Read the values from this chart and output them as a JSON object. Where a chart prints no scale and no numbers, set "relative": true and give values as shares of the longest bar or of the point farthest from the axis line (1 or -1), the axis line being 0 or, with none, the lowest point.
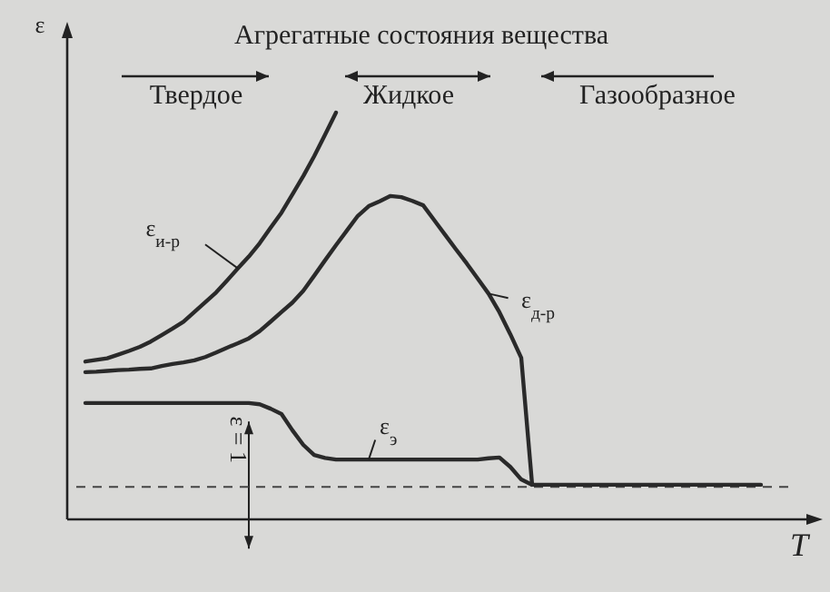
{
  "chart_data": {
    "type": "line",
    "relative": true,
    "title": "Агрегатные состояния вещества",
    "xlabel": "T",
    "ylabel": "ε",
    "marker": "none",
    "line_style": "solid",
    "categories": [
      null,
      null,
      null,
      null,
      null,
      null,
      null,
      null,
      null,
      null,
      null,
      null,
      null,
      null,
      null,
      null,
      null,
      null,
      null,
      null,
      null,
      null,
      null,
      null,
      null,
      null,
      null,
      null,
      null,
      null,
      null,
      null,
      null,
      null,
      null,
      null,
      null,
      null,
      null,
      null,
      null,
      null,
      null,
      null,
      null,
      null,
      null,
      null,
      null,
      null,
      null,
      null,
      null,
      null,
      null,
      null,
      null,
      null,
      null,
      null,
      null,
      null,
      null
    ],
    "annotations": [
      "Твердое",
      "Жидкое",
      "Газообразное",
      "ε = 1"
    ],
    "ref_lines": [
      {
        "axis": "y",
        "value": 0.08,
        "line_style": "dashed",
        "color": "#444444"
      }
    ],
    "series": [
      {
        "name": "ε$_{и-р}$",
        "color": "#2a2a2a",
        "values": [
          0.388,
          0.392,
          0.396,
          0.405,
          0.414,
          0.424,
          0.437,
          0.453,
          0.469,
          0.486,
          0.51,
          0.534,
          0.558,
          0.587,
          0.617,
          0.646,
          0.679,
          0.717,
          0.754,
          0.799,
          0.844,
          0.893,
          0.946,
          1,
          null,
          null,
          null,
          null,
          null,
          null,
          null,
          null,
          null,
          null,
          null,
          null,
          null,
          null,
          null,
          null,
          null,
          null,
          null,
          null,
          null,
          null,
          null,
          null,
          null,
          null,
          null,
          null,
          null,
          null,
          null,
          null,
          null,
          null,
          null,
          null,
          null,
          null,
          null
        ]
      },
      {
        "name": "ε$_{д-р}$",
        "color": "#2a2a2a",
        "values": [
          0.362,
          0.363,
          0.365,
          0.367,
          0.368,
          0.37,
          0.371,
          0.377,
          0.382,
          0.386,
          0.391,
          0.399,
          0.41,
          0.422,
          0.433,
          0.445,
          0.463,
          0.486,
          0.51,
          0.533,
          0.562,
          0.599,
          0.637,
          0.674,
          0.71,
          0.746,
          0.77,
          0.782,
          0.795,
          0.792,
          0.783,
          0.772,
          0.736,
          0.7,
          0.664,
          0.629,
          0.592,
          0.555,
          0.509,
          0.455,
          0.397,
          0.085,
          null,
          null,
          null,
          null,
          null,
          null,
          null,
          null,
          null,
          null,
          null,
          null,
          null,
          null,
          null,
          null,
          null,
          null,
          null,
          null,
          null
        ]
      },
      {
        "name": "ε$_{э}$",
        "color": "#2a2a2a",
        "values": [
          0.286,
          0.286,
          0.286,
          0.286,
          0.286,
          0.286,
          0.286,
          0.286,
          0.286,
          0.286,
          0.286,
          0.286,
          0.286,
          0.286,
          0.286,
          0.286,
          0.283,
          0.272,
          0.259,
          0.219,
          0.183,
          0.158,
          0.151,
          0.147,
          0.147,
          0.147,
          0.147,
          0.147,
          0.147,
          0.147,
          0.147,
          0.147,
          0.147,
          0.147,
          0.147,
          0.147,
          0.147,
          0.15,
          0.152,
          0.129,
          0.098,
          0.085,
          0.085,
          0.085,
          0.085,
          0.085,
          0.085,
          0.085,
          0.085,
          0.085,
          0.085,
          0.085,
          0.085,
          0.085,
          0.085,
          0.085,
          0.085,
          0.085,
          0.085,
          0.085,
          0.085,
          0.085,
          0.085
        ]
      }
    ]
  }
}
